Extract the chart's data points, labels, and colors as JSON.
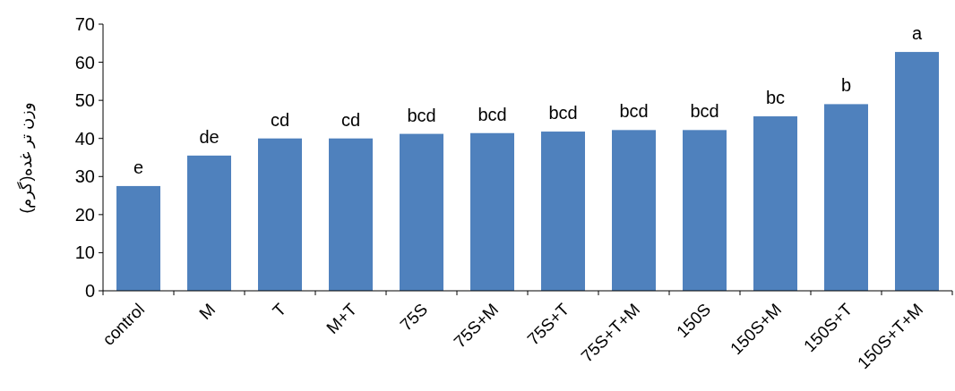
{
  "chart_data": {
    "type": "bar",
    "ylabel": "وزن تر غده(گرم)",
    "categories": [
      "control",
      "M",
      "T",
      "M+T",
      "75S",
      "75S+M",
      "75S+T",
      "75S+T+M",
      "150S",
      "150S+M",
      "150S+T",
      "150S+T+M"
    ],
    "values": [
      27.5,
      35.5,
      40,
      40,
      41.2,
      41.4,
      41.8,
      42.2,
      42.2,
      45.8,
      49,
      62.7
    ],
    "color": "#4f81bd",
    "ylim": [
      0,
      70
    ],
    "yticks": [
      0,
      10,
      20,
      30,
      40,
      50,
      60,
      70
    ],
    "grid": false,
    "annotations": [
      {
        "text": "e",
        "x": "control",
        "y": 27.5
      },
      {
        "text": "de",
        "x": "M",
        "y": 35.5
      },
      {
        "text": "cd",
        "x": "T",
        "y": 40
      },
      {
        "text": "cd",
        "x": "M+T",
        "y": 40
      },
      {
        "text": "bcd",
        "x": "75S",
        "y": 41.2
      },
      {
        "text": "bcd",
        "x": "75S+M",
        "y": 41.4
      },
      {
        "text": "bcd",
        "x": "75S+T",
        "y": 41.8
      },
      {
        "text": "bcd",
        "x": "75S+T+M",
        "y": 42.2
      },
      {
        "text": "bcd",
        "x": "150S",
        "y": 42.2
      },
      {
        "text": "bc",
        "x": "150S+M",
        "y": 45.8
      },
      {
        "text": "b",
        "x": "150S+T",
        "y": 49
      },
      {
        "text": "a",
        "x": "150S+T+M",
        "y": 62.7
      }
    ]
  }
}
